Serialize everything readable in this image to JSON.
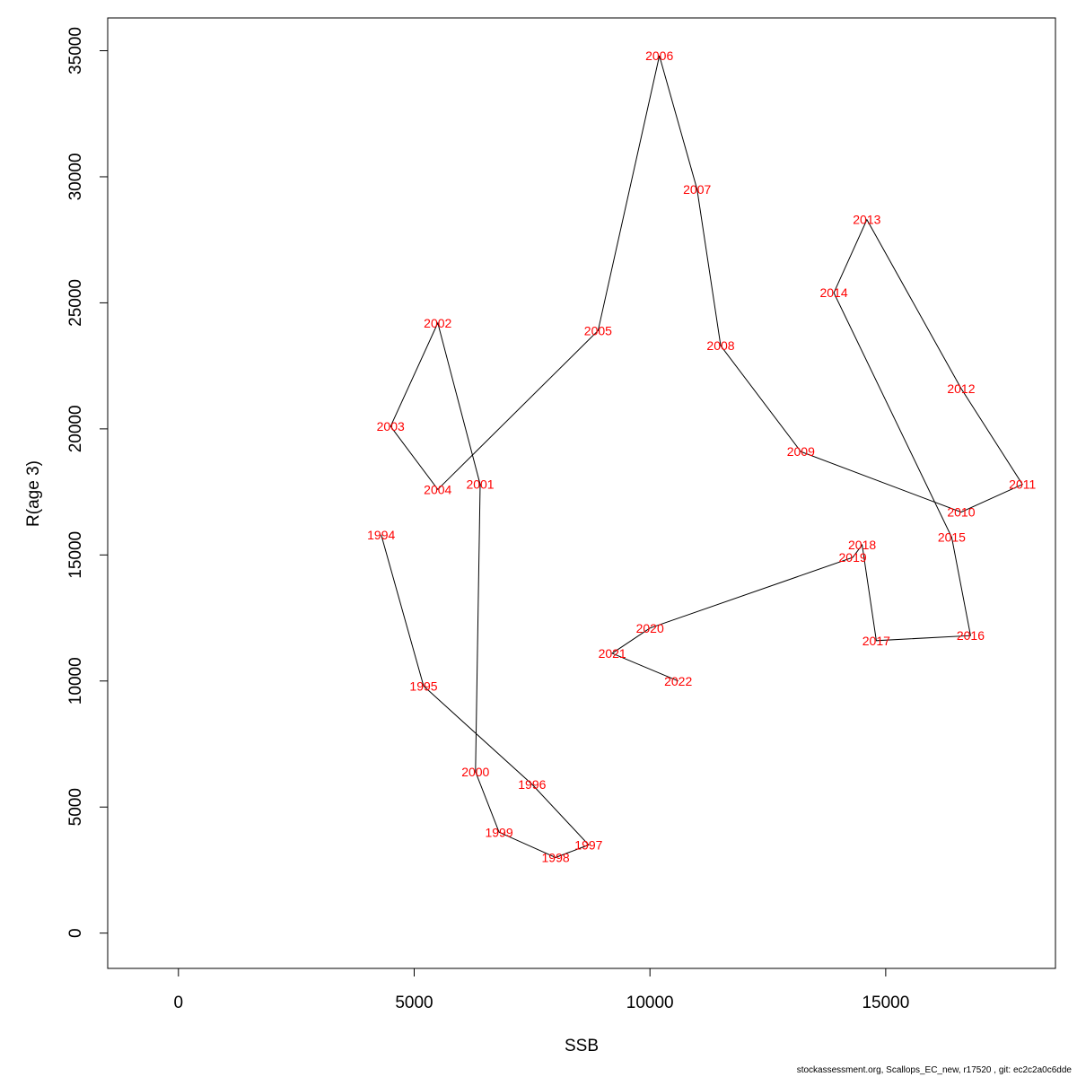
{
  "chart_data": {
    "type": "line",
    "xlabel": "SSB",
    "ylabel": "R(age 3)",
    "xlim": [
      -1500,
      18600
    ],
    "ylim": [
      -1400,
      36300
    ],
    "x_ticks": [
      0,
      5000,
      10000,
      15000
    ],
    "y_ticks": [
      0,
      5000,
      10000,
      15000,
      20000,
      25000,
      30000,
      35000
    ],
    "line_color": "#000000",
    "label_color": "#ff0000",
    "points": [
      {
        "label": "1994",
        "x": 4300,
        "y": 15800
      },
      {
        "label": "1995",
        "x": 5200,
        "y": 9800
      },
      {
        "label": "1996",
        "x": 7500,
        "y": 5900
      },
      {
        "label": "1997",
        "x": 8700,
        "y": 3500
      },
      {
        "label": "1998",
        "x": 8000,
        "y": 3000
      },
      {
        "label": "1999",
        "x": 6800,
        "y": 4000
      },
      {
        "label": "2000",
        "x": 6300,
        "y": 6400
      },
      {
        "label": "2001",
        "x": 6400,
        "y": 17800
      },
      {
        "label": "2002",
        "x": 5500,
        "y": 24200
      },
      {
        "label": "2003",
        "x": 4500,
        "y": 20100
      },
      {
        "label": "2004",
        "x": 5500,
        "y": 17600
      },
      {
        "label": "2005",
        "x": 8900,
        "y": 23900
      },
      {
        "label": "2006",
        "x": 10200,
        "y": 34800
      },
      {
        "label": "2007",
        "x": 11000,
        "y": 29500
      },
      {
        "label": "2008",
        "x": 11500,
        "y": 23300
      },
      {
        "label": "2009",
        "x": 13200,
        "y": 19100
      },
      {
        "label": "2010",
        "x": 16600,
        "y": 16700
      },
      {
        "label": "2011",
        "x": 17900,
        "y": 17800
      },
      {
        "label": "2012",
        "x": 16600,
        "y": 21600
      },
      {
        "label": "2013",
        "x": 14600,
        "y": 28300
      },
      {
        "label": "2014",
        "x": 13900,
        "y": 25400
      },
      {
        "label": "2015",
        "x": 16400,
        "y": 15700
      },
      {
        "label": "2016",
        "x": 16800,
        "y": 11800
      },
      {
        "label": "2017",
        "x": 14800,
        "y": 11600
      },
      {
        "label": "2018",
        "x": 14500,
        "y": 15400
      },
      {
        "label": "2019",
        "x": 14300,
        "y": 14900
      },
      {
        "label": "2020",
        "x": 10000,
        "y": 12100
      },
      {
        "label": "2021",
        "x": 9200,
        "y": 11100
      },
      {
        "label": "2022",
        "x": 10600,
        "y": 10000
      }
    ]
  },
  "footer": "stockassessment.org, Scallops_EC_new, r17520 , git: ec2c2a0c6dde"
}
